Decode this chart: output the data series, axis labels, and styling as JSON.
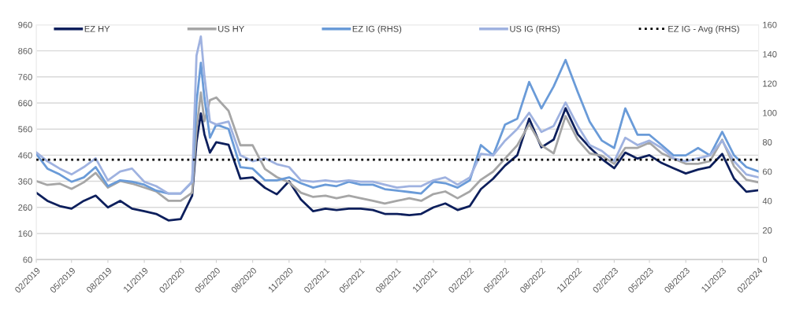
{
  "chart_data": {
    "type": "line",
    "x": [
      "2019-02-01",
      "2019-03-01",
      "2019-04-01",
      "2019-05-01",
      "2019-06-01",
      "2019-07-01",
      "2019-08-01",
      "2019-09-01",
      "2019-10-01",
      "2019-11-01",
      "2019-12-01",
      "2020-01-01",
      "2020-02-01",
      "2020-03-01",
      "2020-03-12",
      "2020-03-23",
      "2020-04-01",
      "2020-04-15",
      "2020-05-01",
      "2020-06-01",
      "2020-07-01",
      "2020-08-01",
      "2020-09-01",
      "2020-10-01",
      "2020-11-01",
      "2020-12-01",
      "2021-01-01",
      "2021-02-01",
      "2021-03-01",
      "2021-04-01",
      "2021-05-01",
      "2021-06-01",
      "2021-07-01",
      "2021-08-01",
      "2021-09-01",
      "2021-10-01",
      "2021-11-01",
      "2021-12-01",
      "2022-01-01",
      "2022-02-01",
      "2022-03-01",
      "2022-04-01",
      "2022-05-01",
      "2022-06-01",
      "2022-07-01",
      "2022-08-01",
      "2022-09-01",
      "2022-10-01",
      "2022-11-01",
      "2022-12-01",
      "2023-01-01",
      "2023-02-01",
      "2023-03-01",
      "2023-04-01",
      "2023-05-01",
      "2023-06-01",
      "2023-07-01",
      "2023-08-01",
      "2023-09-01",
      "2023-10-01",
      "2023-11-01",
      "2023-12-01",
      "2024-01-01",
      "2024-02-01"
    ],
    "series": [
      {
        "name": "EZ HY",
        "color": "#0d1f5c",
        "values": [
          316,
          285,
          265,
          255,
          285,
          305,
          260,
          285,
          255,
          245,
          235,
          210,
          215,
          305,
          510,
          620,
          540,
          470,
          510,
          500,
          370,
          375,
          335,
          310,
          360,
          290,
          245,
          255,
          250,
          255,
          255,
          250,
          235,
          235,
          230,
          235,
          260,
          275,
          250,
          265,
          330,
          370,
          420,
          460,
          600,
          490,
          520,
          640,
          540,
          490,
          445,
          410,
          470,
          447,
          460,
          430,
          410,
          390,
          405,
          415,
          465,
          370,
          320,
          326
        ]
      },
      {
        "name": "US HY",
        "color": "#a6a6a6",
        "values": [
          361,
          346,
          351,
          331,
          356,
          392,
          336,
          361,
          351,
          336,
          321,
          285,
          285,
          316,
          559,
          700,
          590,
          671,
          681,
          630,
          498,
          498,
          407,
          376,
          356,
          316,
          300,
          305,
          295,
          305,
          295,
          285,
          275,
          285,
          295,
          285,
          311,
          321,
          295,
          321,
          366,
          397,
          447,
          498,
          579,
          498,
          467,
          610,
          519,
          467,
          458,
          427,
          488,
          488,
          508,
          467,
          447,
          427,
          427,
          437,
          519,
          417,
          366,
          356
        ]
      },
      {
        "name": "EZ IG (RHS)",
        "color": "#6a9bd8",
        "axis": "y2",
        "values": [
          72,
          62,
          58,
          53,
          56,
          63,
          50,
          54,
          53,
          51,
          47,
          45,
          45,
          53,
          107,
          134,
          110,
          83,
          92,
          89,
          63,
          62,
          54,
          54,
          56,
          52,
          49,
          51,
          50,
          53,
          51,
          51,
          48,
          47,
          46,
          45,
          53,
          52,
          49,
          54,
          78,
          71,
          92,
          96,
          121,
          103,
          118,
          136,
          114,
          94,
          81,
          76,
          103,
          85,
          85,
          78,
          71,
          71,
          76,
          71,
          87,
          71,
          63,
          60
        ]
      },
      {
        "name": "US IG (RHS)",
        "color": "#9fb2e0",
        "axis": "y2",
        "values": [
          73,
          67,
          62,
          58,
          63,
          69,
          54,
          60,
          62,
          53,
          50,
          45,
          45,
          53,
          139,
          152,
          125,
          94,
          92,
          94,
          71,
          67,
          69,
          65,
          63,
          54,
          53,
          54,
          53,
          54,
          53,
          53,
          51,
          49,
          50,
          50,
          54,
          56,
          51,
          56,
          72,
          71,
          81,
          89,
          100,
          87,
          91,
          107,
          91,
          78,
          74,
          67,
          83,
          78,
          81,
          76,
          69,
          67,
          69,
          71,
          81,
          67,
          58,
          56
        ]
      }
    ],
    "ref_lines": [
      {
        "axis": "y2",
        "value": 68,
        "label": "EZ IG - Avg (RHS)",
        "color": "#000000",
        "line_style": "dotted"
      }
    ],
    "xlim": [
      "2019-02-01",
      "2024-02-01"
    ],
    "xticks": [
      {
        "value": "2019-02-01",
        "label": "02/2019"
      },
      {
        "value": "2019-05-01",
        "label": "05/2019"
      },
      {
        "value": "2019-08-01",
        "label": "08/2019"
      },
      {
        "value": "2019-11-01",
        "label": "11/2019"
      },
      {
        "value": "2020-02-01",
        "label": "02/2020"
      },
      {
        "value": "2020-05-01",
        "label": "05/2020"
      },
      {
        "value": "2020-08-01",
        "label": "08/2020"
      },
      {
        "value": "2020-11-01",
        "label": "11/2020"
      },
      {
        "value": "2021-02-01",
        "label": "02/2021"
      },
      {
        "value": "2021-05-01",
        "label": "05/2021"
      },
      {
        "value": "2021-08-01",
        "label": "08/2021"
      },
      {
        "value": "2021-11-01",
        "label": "11/2021"
      },
      {
        "value": "2022-02-01",
        "label": "02/2022"
      },
      {
        "value": "2022-05-01",
        "label": "05/2022"
      },
      {
        "value": "2022-08-01",
        "label": "08/2022"
      },
      {
        "value": "2022-11-01",
        "label": "11/2022"
      },
      {
        "value": "2023-02-01",
        "label": "02/2023"
      },
      {
        "value": "2023-05-01",
        "label": "05/2023"
      },
      {
        "value": "2023-08-01",
        "label": "08/2023"
      },
      {
        "value": "2023-11-01",
        "label": "11/2023"
      },
      {
        "value": "2024-02-01",
        "label": "02/2024"
      }
    ],
    "ylim": [
      60,
      960
    ],
    "yticks": [
      60,
      160,
      260,
      360,
      460,
      560,
      660,
      760,
      860,
      960
    ],
    "y2lim": [
      0,
      160
    ],
    "y2ticks": [
      0,
      20,
      40,
      60,
      80,
      100,
      120,
      140,
      160
    ],
    "grid": "y",
    "legend": "top",
    "line_style": "solid",
    "marker": "none"
  }
}
